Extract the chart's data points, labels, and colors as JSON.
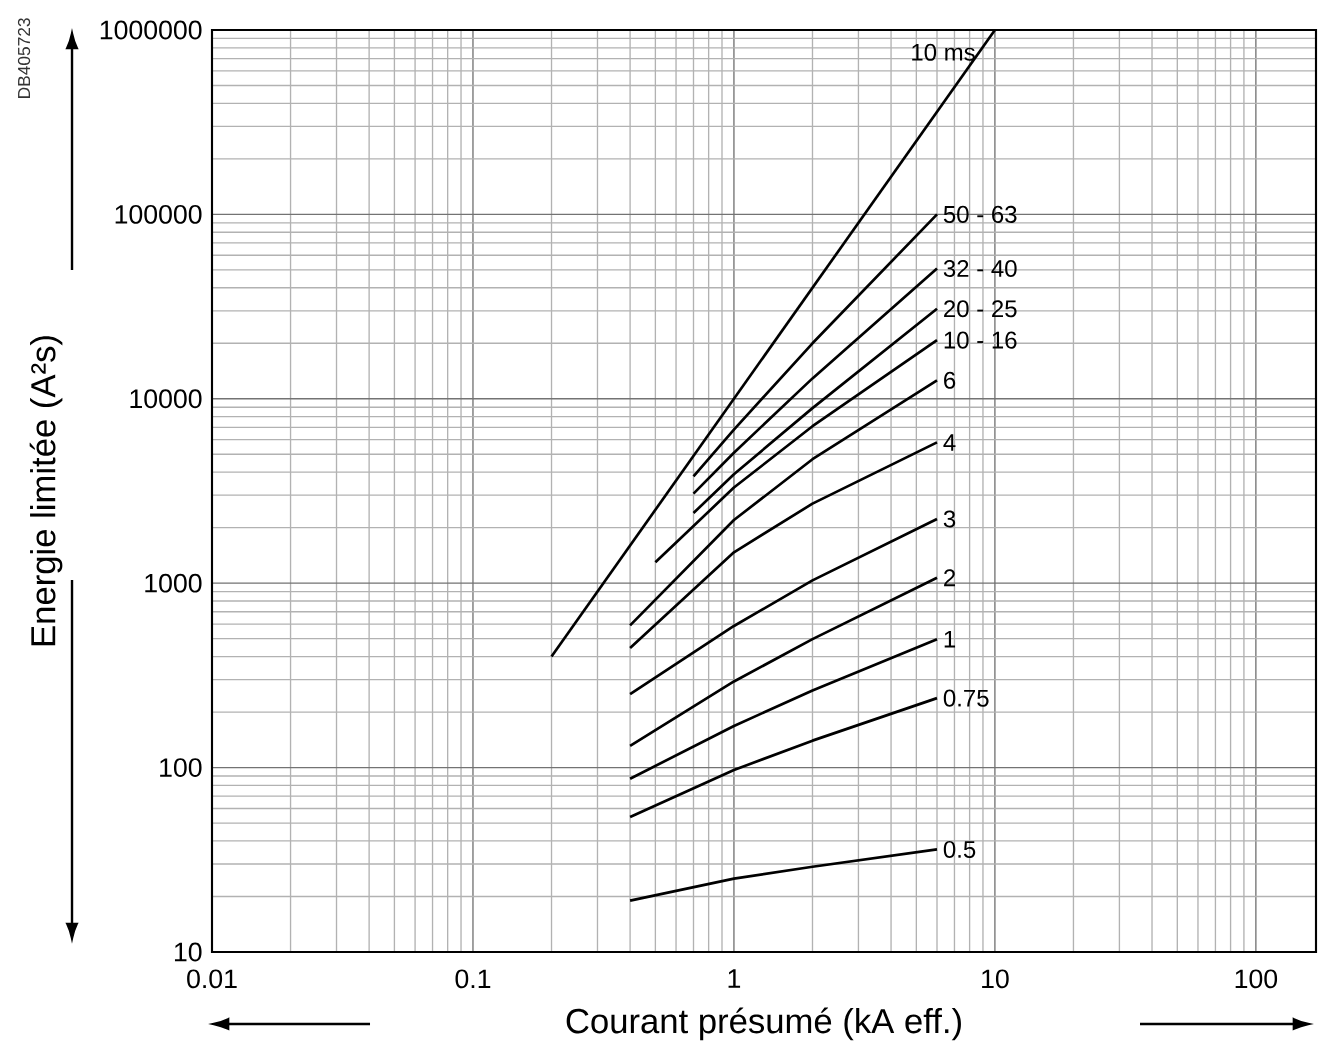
{
  "chart_data": {
    "type": "line",
    "xlabel": "Courant présumé (kA eff.)",
    "ylabel": "Energie limitée (A²s)",
    "annotations": [
      "DB405723"
    ],
    "log": "xy",
    "grid": true,
    "marker": "none",
    "line_style": "solid",
    "xlim": [
      0.01,
      170
    ],
    "ylim": [
      10,
      1000000
    ],
    "xticks": [
      0.01,
      0.1,
      1,
      10,
      100
    ],
    "yticks": [
      10,
      100,
      1000,
      10000,
      100000,
      1000000
    ],
    "series": [
      {
        "name": "10 ms",
        "color": "#000000",
        "x": [
          0.2,
          10
        ],
        "values": [
          400,
          1000000
        ]
      },
      {
        "name": "50 - 63",
        "color": "#000000",
        "x": [
          0.7,
          1,
          2,
          6
        ],
        "values": [
          3800,
          6800,
          20000,
          100000
        ]
      },
      {
        "name": "32 - 40",
        "color": "#000000",
        "x": [
          0.7,
          1,
          2,
          6
        ],
        "values": [
          3060,
          5100,
          12900,
          50900
        ]
      },
      {
        "name": "20 - 25",
        "color": "#000000",
        "x": [
          0.7,
          1,
          2,
          6
        ],
        "values": [
          2400,
          3900,
          8900,
          30800
        ]
      },
      {
        "name": "10 - 16",
        "color": "#000000",
        "x": [
          0.5,
          1,
          2,
          6
        ],
        "values": [
          1300,
          3300,
          7100,
          20800
        ]
      },
      {
        "name": "6",
        "color": "#000000",
        "x": [
          0.4,
          1,
          2,
          6
        ],
        "values": [
          590,
          2200,
          4700,
          12600
        ]
      },
      {
        "name": "4",
        "color": "#000000",
        "x": [
          0.4,
          1,
          2,
          6
        ],
        "values": [
          445,
          1470,
          2700,
          5800
        ]
      },
      {
        "name": "3",
        "color": "#000000",
        "x": [
          0.4,
          1,
          2,
          6
        ],
        "values": [
          250,
          586,
          1035,
          2230
        ]
      },
      {
        "name": "2",
        "color": "#000000",
        "x": [
          0.4,
          1,
          2,
          6
        ],
        "values": [
          131,
          293,
          497,
          1070
        ]
      },
      {
        "name": "1",
        "color": "#000000",
        "x": [
          0.4,
          1,
          2,
          6
        ],
        "values": [
          87,
          168,
          262,
          497
        ]
      },
      {
        "name": "0.75",
        "color": "#000000",
        "x": [
          0.4,
          1,
          2,
          6
        ],
        "values": [
          54,
          97,
          140,
          238
        ]
      },
      {
        "name": "0.5",
        "color": "#000000",
        "x": [
          0.4,
          1,
          2,
          6
        ],
        "values": [
          19,
          25,
          29,
          36
        ]
      }
    ]
  }
}
